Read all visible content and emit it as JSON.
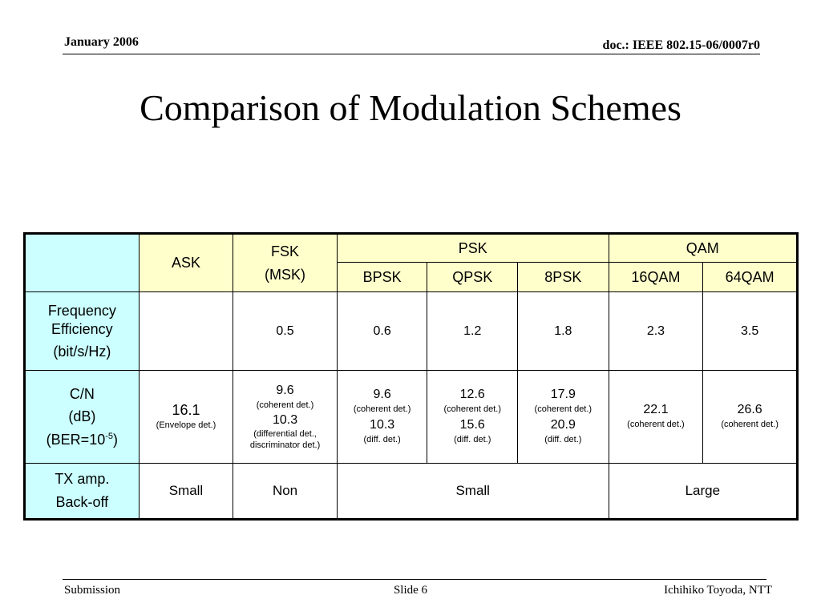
{
  "header": {
    "date": "January 2006",
    "doc": "doc.: IEEE 802.15-06/0007r0"
  },
  "title": "Comparison of Modulation Schemes",
  "table": {
    "groups": {
      "ask": "ASK",
      "fsk_line1": "FSK",
      "fsk_line2": "(MSK)",
      "psk": "PSK",
      "qam": "QAM"
    },
    "sub": {
      "bpsk": "BPSK",
      "qpsk": "QPSK",
      "8psk": "8PSK",
      "16qam": "16QAM",
      "64qam": "64QAM"
    },
    "rows": {
      "freq": {
        "label_line1": "Frequency",
        "label_line2": "Efficiency",
        "label_line3": "(bit/s/Hz)",
        "ask": "",
        "fsk": "0.5",
        "bpsk": "0.6",
        "qpsk": "1.2",
        "8psk": "1.8",
        "16qam": "2.3",
        "64qam": "3.5"
      },
      "cn": {
        "label_line1": "C/N",
        "label_line2": "(dB)",
        "label_ber": "(BER=10",
        "label_exp": "-5",
        "label_close": ")",
        "ask_val": "16.1",
        "ask_note": "(Envelope det.)",
        "fsk_val1": "9.6",
        "fsk_note1": "(coherent det.)",
        "fsk_val2": "10.3",
        "fsk_note2a": "(differential det.,",
        "fsk_note2b": "discriminator det.)",
        "bpsk_val1": "9.6",
        "bpsk_note1": "(coherent det.)",
        "bpsk_val2": "10.3",
        "bpsk_note2": "(diff. det.)",
        "qpsk_val1": "12.6",
        "qpsk_note1": "(coherent det.)",
        "qpsk_val2": "15.6",
        "qpsk_note2": "(diff. det.)",
        "8psk_val1": "17.9",
        "8psk_note1": "(coherent det.)",
        "8psk_val2": "20.9",
        "8psk_note2": "(diff. det.)",
        "16qam_val": "22.1",
        "16qam_note": "(coherent det.)",
        "64qam_val": "26.6",
        "64qam_note": "(coherent det.)"
      },
      "tx": {
        "label_line1": "TX amp.",
        "label_line2": "Back-off",
        "ask": "Small",
        "fsk": "Non",
        "psk": "Small",
        "qam": "Large"
      }
    }
  },
  "footer": {
    "left": "Submission",
    "center": "Slide 6",
    "right": "Ichihiko Toyoda, NTT"
  }
}
